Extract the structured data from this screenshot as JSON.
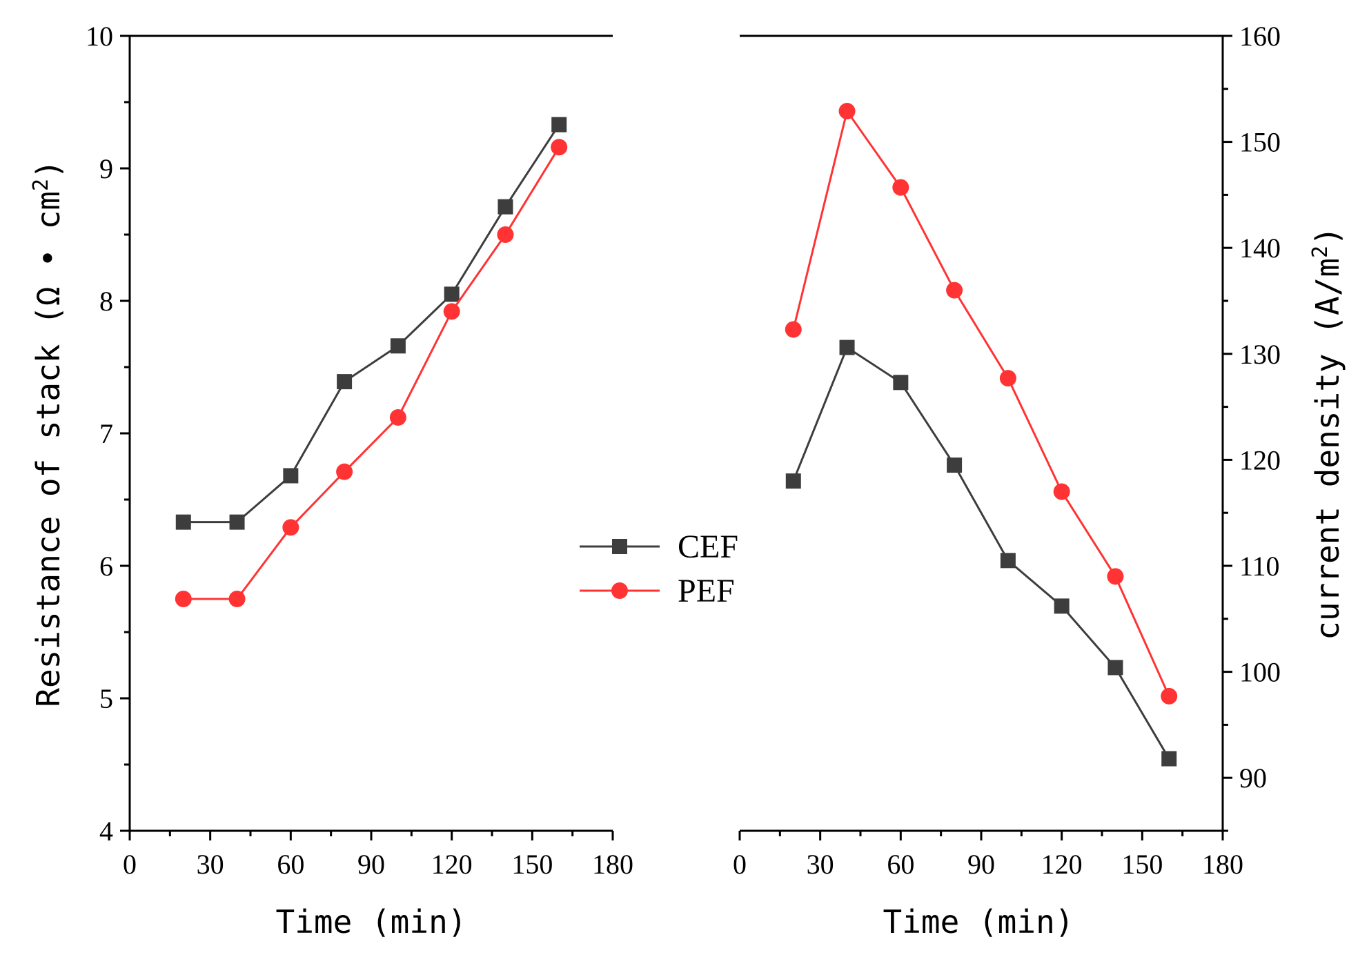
{
  "chart_data": [
    {
      "type": "line",
      "panel": "left",
      "title": "",
      "xlabel": "Time (min)",
      "ylabel": "Resistance of stack (Ω·cm²)",
      "ylabel_text": "Resistance of stack (Ω • cm",
      "ylabel_sup": "2",
      "ylabel_close": ")",
      "xlim": [
        0,
        180
      ],
      "ylim": [
        4,
        10
      ],
      "xticks": [
        0,
        30,
        60,
        90,
        120,
        150,
        180
      ],
      "yticks": [
        4,
        5,
        6,
        7,
        8,
        9,
        10
      ],
      "x": [
        20,
        40,
        60,
        80,
        100,
        120,
        140,
        160
      ],
      "series": [
        {
          "name": "CEF",
          "marker": "square",
          "color": "#3d3d3d",
          "values": [
            6.33,
            6.33,
            6.68,
            7.39,
            7.66,
            8.05,
            8.71,
            9.33
          ]
        },
        {
          "name": "PEF",
          "marker": "circle",
          "color": "#ff3333",
          "values": [
            5.75,
            5.75,
            6.29,
            6.71,
            7.12,
            7.92,
            8.5,
            9.16
          ]
        }
      ],
      "grid": false
    },
    {
      "type": "line",
      "panel": "right",
      "title": "",
      "xlabel": "Time (min)",
      "ylabel": "current density (A/m²)",
      "ylabel_text": "current density (A/m",
      "ylabel_sup": "2",
      "ylabel_close": ")",
      "xlim": [
        0,
        180
      ],
      "ylim": [
        85,
        160
      ],
      "xticks": [
        0,
        30,
        60,
        90,
        120,
        150,
        180
      ],
      "yticks": [
        90,
        100,
        110,
        120,
        130,
        140,
        150,
        160
      ],
      "x": [
        20,
        40,
        60,
        80,
        100,
        120,
        140,
        160
      ],
      "series": [
        {
          "name": "CEF",
          "marker": "square",
          "color": "#3d3d3d",
          "values": [
            118.0,
            130.6,
            127.3,
            119.5,
            110.5,
            106.2,
            100.4,
            91.8
          ]
        },
        {
          "name": "PEF",
          "marker": "circle",
          "color": "#ff3333",
          "values": [
            132.3,
            152.9,
            145.7,
            136.0,
            127.7,
            117.0,
            109.0,
            97.7
          ]
        }
      ],
      "grid": false
    }
  ],
  "legend": {
    "position": "center",
    "items": [
      {
        "label": "CEF",
        "marker": "square",
        "color": "#3d3d3d"
      },
      {
        "label": "PEF",
        "marker": "circle",
        "color": "#ff3333"
      }
    ]
  }
}
